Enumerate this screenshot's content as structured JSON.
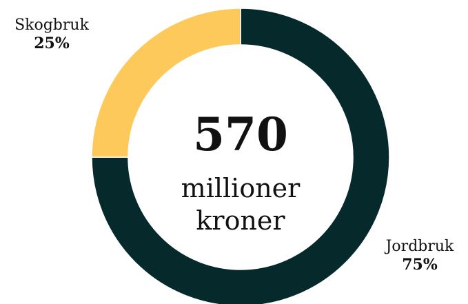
{
  "chart_data": {
    "type": "pie",
    "variant": "donut",
    "center_value": "570",
    "center_unit_line1": "millioner",
    "center_unit_line2": "kroner",
    "segments": [
      {
        "label": "Jordbruk",
        "percent_label": "75%",
        "value": 75,
        "color": "#062a2b"
      },
      {
        "label": "Skogbruk",
        "percent_label": "25%",
        "value": 25,
        "color": "#fcc95a"
      }
    ]
  }
}
